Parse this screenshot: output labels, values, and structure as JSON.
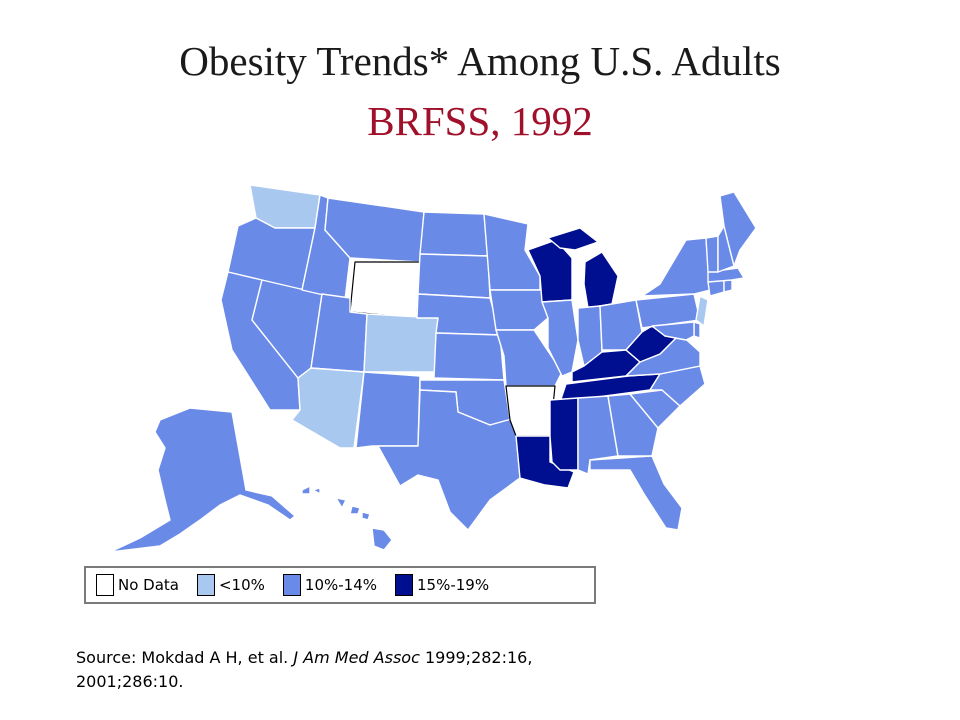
{
  "title": {
    "line1": "Obesity Trends* Among U.S. Adults",
    "line2": "BRFSS, 1992"
  },
  "colors": {
    "no_data": "#ffffff",
    "lt10": "#a9c8f0",
    "p10_14": "#6a8ae8",
    "p15_19": "#000e90",
    "title_accent": "#a0102a"
  },
  "legend": {
    "items": [
      {
        "label": "No Data",
        "category": "no_data"
      },
      {
        "label": "<10%",
        "category": "lt10"
      },
      {
        "label": "10%-14%",
        "category": "p10_14"
      },
      {
        "label": "15%-19%",
        "category": "p15_19"
      }
    ]
  },
  "map_data": {
    "states": {
      "WA": "lt10",
      "OR": "p10_14",
      "CA": "p10_14",
      "NV": "p10_14",
      "ID": "p10_14",
      "MT": "p10_14",
      "WY": "no_data",
      "UT": "p10_14",
      "AZ": "lt10",
      "CO": "lt10",
      "NM": "p10_14",
      "ND": "p10_14",
      "SD": "p10_14",
      "NE": "p10_14",
      "KS": "p10_14",
      "OK": "p10_14",
      "TX": "p10_14",
      "MN": "p10_14",
      "IA": "p10_14",
      "MO": "p10_14",
      "AR": "no_data",
      "LA": "p15_19",
      "WI": "p15_19",
      "IL": "p10_14",
      "MI": "p15_19",
      "IN": "p10_14",
      "OH": "p10_14",
      "KY": "p15_19",
      "TN": "p15_19",
      "MS": "p15_19",
      "AL": "p10_14",
      "GA": "p10_14",
      "FL": "p10_14",
      "SC": "p10_14",
      "NC": "p10_14",
      "VA": "p10_14",
      "WV": "p15_19",
      "PA": "p10_14",
      "NY": "p10_14",
      "NJ": "lt10",
      "DE": "p10_14",
      "MD": "p10_14",
      "CT": "p10_14",
      "RI": "p10_14",
      "MA": "p10_14",
      "VT": "p10_14",
      "NH": "p10_14",
      "ME": "p10_14",
      "AK": "p10_14",
      "HI": "p10_14"
    }
  },
  "source": {
    "prefix": "Source: Mokdad A H, et al. ",
    "journal": "J Am Med Assoc",
    "suffix": " 1999;282:16,",
    "line2": "2001;286:10."
  }
}
